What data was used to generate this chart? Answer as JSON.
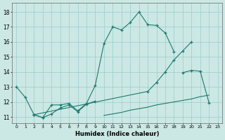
{
  "xlabel": "Humidex (Indice chaleur)",
  "background_color": "#cce8e4",
  "grid_color": "#99cccc",
  "line_color": "#1a7a6e",
  "x_ticks": [
    0,
    1,
    2,
    3,
    4,
    5,
    6,
    7,
    8,
    9,
    10,
    11,
    12,
    13,
    14,
    15,
    16,
    17,
    18,
    19,
    20,
    21,
    22,
    23
  ],
  "y_ticks": [
    11,
    12,
    13,
    14,
    15,
    16,
    17,
    18
  ],
  "ylim": [
    10.6,
    18.6
  ],
  "xlim": [
    -0.5,
    23.5
  ],
  "s1x": [
    0,
    1,
    2,
    3,
    4,
    5,
    6,
    7,
    8,
    9,
    10,
    11,
    12,
    13,
    14,
    15,
    16,
    17,
    18
  ],
  "s1y": [
    13.0,
    12.3,
    11.15,
    10.95,
    11.8,
    11.8,
    11.9,
    11.4,
    11.9,
    13.1,
    15.9,
    17.0,
    16.8,
    17.3,
    18.0,
    17.15,
    17.1,
    16.6,
    15.35
  ],
  "s2ax": [
    2,
    3,
    4,
    5,
    6,
    7,
    8,
    9
  ],
  "s2ay": [
    11.15,
    10.95,
    11.2,
    11.6,
    11.8,
    11.35,
    11.85,
    12.05
  ],
  "s2bx": [
    19,
    20,
    21,
    22
  ],
  "s2by": [
    13.95,
    14.1,
    14.05,
    11.95
  ],
  "s3x": [
    2,
    15,
    16,
    17,
    18,
    19,
    20
  ],
  "s3y": [
    11.15,
    12.7,
    13.3,
    14.0,
    14.8,
    15.4,
    16.0
  ],
  "s4x": [
    10,
    11,
    12,
    13,
    14,
    15,
    16,
    17,
    18,
    19,
    20,
    21,
    22
  ],
  "s4y": [
    11.1,
    11.2,
    11.3,
    11.45,
    11.55,
    11.65,
    11.8,
    11.9,
    12.0,
    12.1,
    12.2,
    12.35,
    12.45
  ]
}
